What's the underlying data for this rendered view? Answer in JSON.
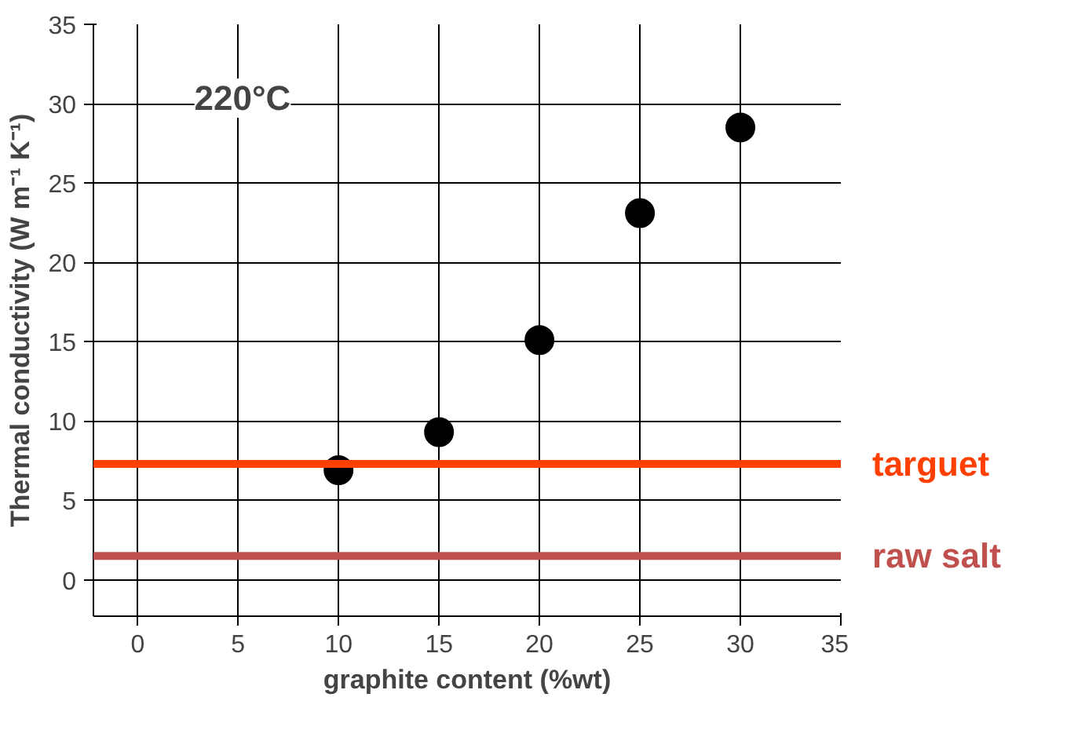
{
  "chart_data": {
    "type": "scatter",
    "xlabel": "graphite content (%wt)",
    "ylabel": "Thermal conductivity (W m⁻¹ K⁻¹)",
    "x": [
      10,
      15,
      20,
      25,
      30
    ],
    "series": [
      {
        "color": "#000000",
        "values": [
          6.9,
          9.3,
          15.1,
          23.1,
          28.5
        ]
      }
    ],
    "xlim": [
      -2.2,
      35
    ],
    "ylim": [
      -2.3,
      35
    ],
    "xticks": [
      0,
      5,
      10,
      15,
      20,
      25,
      30,
      35
    ],
    "yticks": [
      0,
      5,
      10,
      15,
      20,
      25,
      30,
      35
    ],
    "grid": true,
    "marker": "circle",
    "annotations": [
      "220°C"
    ],
    "ref_lines": [
      {
        "axis": "y",
        "value": 7.3,
        "label": "targuet",
        "color": "#ff4000"
      },
      {
        "axis": "y",
        "value": 1.5,
        "label": "raw salt",
        "color": "#c0504d"
      }
    ]
  }
}
